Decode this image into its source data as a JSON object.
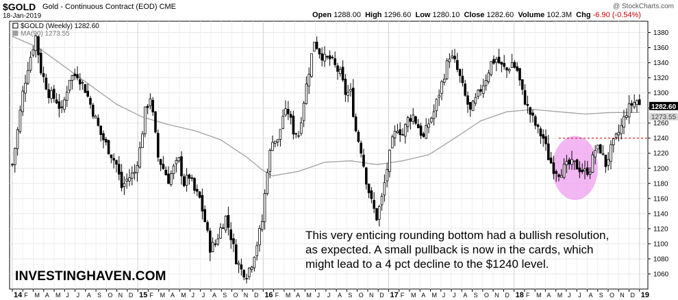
{
  "header": {
    "symbol": "$GOLD",
    "name": "Gold - Continuous Contract (EOD)",
    "exchange": "CME",
    "date": "18-Jan-2019",
    "watermark": "@ StockCharts.com",
    "ohlc": {
      "open_label": "Open",
      "open": "1288.00",
      "high_label": "High",
      "high": "1296.60",
      "low_label": "Low",
      "low": "1280.10",
      "close_label": "Close",
      "close": "1282.60",
      "volume_label": "Volume",
      "volume": "102.3M",
      "chg_label": "Chg",
      "chg": "-6.90 (-0.54%)"
    }
  },
  "legend": {
    "price": "$GOLD (Weekly) 1282.60",
    "ma": "MA(90) 1273.55"
  },
  "annotation_lines": [
    "This very enticing rounding bottom had a bullish resolution,",
    "as expected. A small pullback is now in the cards, which",
    "might lead to a 4 pct decline to the $1240 level."
  ],
  "brand": "INVESTINGHAVEN.COM",
  "colors": {
    "candle": "#000000",
    "ma_line": "#a0a0a0",
    "level_line": "#d00000",
    "highlight_fill": "#ee99ee",
    "price_tag_bg": "#000000",
    "ma_tag_bg": "#d8d8d8"
  },
  "chart_data": {
    "type": "candlestick",
    "title": "$GOLD (Weekly)",
    "ylim": [
      1040,
      1395
    ],
    "y_ticks": [
      1060,
      1080,
      1100,
      1120,
      1140,
      1160,
      1180,
      1200,
      1220,
      1240,
      1260,
      1280,
      1300,
      1320,
      1340,
      1360,
      1380
    ],
    "x_tick_labels": [
      "14",
      "F",
      "M",
      "A",
      "M",
      "J",
      "J",
      "A",
      "S",
      "O",
      "N",
      "D",
      "15",
      "F",
      "M",
      "A",
      "M",
      "J",
      "J",
      "A",
      "S",
      "O",
      "N",
      "D",
      "16",
      "F",
      "M",
      "A",
      "M",
      "J",
      "J",
      "A",
      "S",
      "O",
      "N",
      "D",
      "17",
      "F",
      "M",
      "A",
      "M",
      "J",
      "J",
      "A",
      "S",
      "O",
      "N",
      "D",
      "18",
      "F",
      "M",
      "A",
      "M",
      "J",
      "J",
      "A",
      "S",
      "O",
      "N",
      "D",
      "19"
    ],
    "year_labels": [
      "14",
      "15",
      "16",
      "17",
      "18",
      "19"
    ],
    "last_price": 1282.6,
    "last_price_label": "1282.60",
    "ma_last": 1273.55,
    "ma_last_label": "1273.55",
    "horizontal_level": 1240,
    "highlight": {
      "start": "2018-07",
      "end": "2018-11",
      "low": 1158,
      "high": 1243
    },
    "close_path": [
      [
        0,
        1205
      ],
      [
        2,
        1250
      ],
      [
        4,
        1300
      ],
      [
        6,
        1335
      ],
      [
        9,
        1375
      ],
      [
        11,
        1330
      ],
      [
        14,
        1300
      ],
      [
        17,
        1290
      ],
      [
        19,
        1275
      ],
      [
        22,
        1320
      ],
      [
        25,
        1325
      ],
      [
        28,
        1305
      ],
      [
        31,
        1275
      ],
      [
        34,
        1245
      ],
      [
        37,
        1225
      ],
      [
        40,
        1205
      ],
      [
        42,
        1175
      ],
      [
        44,
        1185
      ],
      [
        47,
        1195
      ],
      [
        49,
        1225
      ],
      [
        51,
        1275
      ],
      [
        53,
        1295
      ],
      [
        54,
        1270
      ],
      [
        56,
        1215
      ],
      [
        58,
        1200
      ],
      [
        60,
        1185
      ],
      [
        62,
        1200
      ],
      [
        64,
        1210
      ],
      [
        66,
        1180
      ],
      [
        68,
        1190
      ],
      [
        70,
        1170
      ],
      [
        72,
        1160
      ],
      [
        74,
        1130
      ],
      [
        76,
        1095
      ],
      [
        78,
        1100
      ],
      [
        80,
        1120
      ],
      [
        82,
        1135
      ],
      [
        84,
        1110
      ],
      [
        86,
        1080
      ],
      [
        88,
        1065
      ],
      [
        90,
        1060
      ],
      [
        92,
        1075
      ],
      [
        94,
        1100
      ],
      [
        96,
        1130
      ],
      [
        98,
        1200
      ],
      [
        100,
        1240
      ],
      [
        102,
        1235
      ],
      [
        104,
        1270
      ],
      [
        106,
        1275
      ],
      [
        108,
        1250
      ],
      [
        110,
        1245
      ],
      [
        112,
        1290
      ],
      [
        114,
        1330
      ],
      [
        116,
        1370
      ],
      [
        118,
        1355
      ],
      [
        120,
        1345
      ],
      [
        122,
        1345
      ],
      [
        124,
        1335
      ],
      [
        126,
        1325
      ],
      [
        128,
        1300
      ],
      [
        130,
        1300
      ],
      [
        132,
        1250
      ],
      [
        134,
        1225
      ],
      [
        136,
        1185
      ],
      [
        138,
        1155
      ],
      [
        140,
        1135
      ],
      [
        142,
        1160
      ],
      [
        144,
        1200
      ],
      [
        146,
        1235
      ],
      [
        148,
        1255
      ],
      [
        150,
        1245
      ],
      [
        152,
        1265
      ],
      [
        154,
        1270
      ],
      [
        156,
        1255
      ],
      [
        158,
        1240
      ],
      [
        160,
        1260
      ],
      [
        162,
        1275
      ],
      [
        164,
        1300
      ],
      [
        166,
        1325
      ],
      [
        168,
        1350
      ],
      [
        170,
        1340
      ],
      [
        172,
        1320
      ],
      [
        174,
        1295
      ],
      [
        176,
        1275
      ],
      [
        178,
        1290
      ],
      [
        180,
        1305
      ],
      [
        182,
        1320
      ],
      [
        184,
        1340
      ],
      [
        186,
        1345
      ],
      [
        188,
        1335
      ],
      [
        190,
        1330
      ],
      [
        192,
        1340
      ],
      [
        194,
        1330
      ],
      [
        196,
        1300
      ],
      [
        198,
        1280
      ],
      [
        200,
        1265
      ],
      [
        202,
        1250
      ],
      [
        204,
        1240
      ],
      [
        206,
        1215
      ],
      [
        208,
        1200
      ],
      [
        210,
        1195
      ],
      [
        212,
        1200
      ],
      [
        214,
        1205
      ],
      [
        216,
        1205
      ],
      [
        218,
        1200
      ],
      [
        220,
        1195
      ],
      [
        222,
        1200
      ],
      [
        224,
        1225
      ],
      [
        226,
        1225
      ],
      [
        228,
        1205
      ],
      [
        230,
        1225
      ],
      [
        232,
        1240
      ],
      [
        234,
        1255
      ],
      [
        236,
        1275
      ],
      [
        238,
        1285
      ],
      [
        240,
        1290
      ],
      [
        241,
        1283
      ]
    ],
    "ma90_path": [
      [
        0,
        1375
      ],
      [
        10,
        1360
      ],
      [
        20,
        1335
      ],
      [
        30,
        1310
      ],
      [
        40,
        1285
      ],
      [
        50,
        1268
      ],
      [
        60,
        1258
      ],
      [
        70,
        1250
      ],
      [
        80,
        1238
      ],
      [
        90,
        1215
      ],
      [
        96,
        1198
      ],
      [
        100,
        1190
      ],
      [
        110,
        1196
      ],
      [
        120,
        1208
      ],
      [
        130,
        1210
      ],
      [
        140,
        1205
      ],
      [
        150,
        1210
      ],
      [
        160,
        1218
      ],
      [
        170,
        1240
      ],
      [
        180,
        1263
      ],
      [
        190,
        1275
      ],
      [
        200,
        1278
      ],
      [
        210,
        1275
      ],
      [
        220,
        1272
      ],
      [
        230,
        1274
      ],
      [
        241,
        1274
      ]
    ]
  }
}
